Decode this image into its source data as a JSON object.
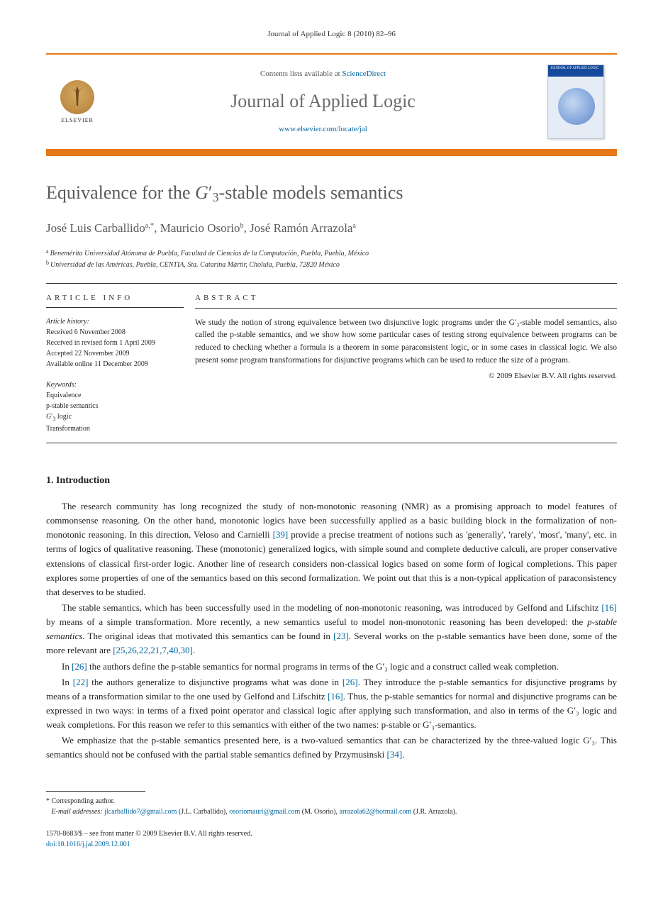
{
  "citation": "Journal of Applied Logic 8 (2010) 82–96",
  "header": {
    "elsevier": "ELSEVIER",
    "contents_prefix": "Contents lists available at ",
    "sciencedirect": "ScienceDirect",
    "journal_name": "Journal of Applied Logic",
    "journal_url": "www.elsevier.com/locate/jal",
    "cover_title": "JOURNAL OF APPLIED LOGIC"
  },
  "title": "Equivalence for the G′₃-stable models semantics",
  "authors_html": "José Luis Carballido",
  "authors": {
    "a1_name": "José Luis Carballido",
    "a1_sup": "a,",
    "a1_star": "*",
    "sep1": ", ",
    "a2_name": "Mauricio Osorio",
    "a2_sup": "b",
    "sep2": ", ",
    "a3_name": "José Ramón Arrazola",
    "a3_sup": "a"
  },
  "affiliations": {
    "a": "Benemérita Universidad Atónoma de Puebla, Facultad de Ciencias de la Computación, Puebla, Puebla, México",
    "b": "Universidad de las Américas, Puebla, CENTIA, Sta. Catarina Mártir, Cholula, Puebla, 72820 México"
  },
  "article_info": {
    "heading": "ARTICLE INFO",
    "history_label": "Article history:",
    "received": "Received 6 November 2008",
    "revised": "Received in revised form 1 April 2009",
    "accepted": "Accepted 22 November 2009",
    "online": "Available online 11 December 2009",
    "kw_label": "Keywords:",
    "kw1": "Equivalence",
    "kw2": "p-stable semantics",
    "kw3": "G′₃ logic",
    "kw4": "Transformation"
  },
  "abstract": {
    "heading": "ABSTRACT",
    "text": "We study the notion of strong equivalence between two disjunctive logic programs under the G′₃-stable model semantics, also called the p-stable semantics, and we show how some particular cases of testing strong equivalence between programs can be reduced to checking whether a formula is a theorem in some paraconsistent logic, or in some cases in classical logic. We also present some program transformations for disjunctive programs which can be used to reduce the size of a program.",
    "copyright": "© 2009 Elsevier B.V. All rights reserved."
  },
  "section1": {
    "heading": "1. Introduction",
    "p1_a": "The research community has long recognized the study of non-monotonic reasoning (NMR) as a promising approach to model features of commonsense reasoning. On the other hand, monotonic logics have been successfully applied as a basic building block in the formalization of non-monotonic reasoning. In this direction, Veloso and Carnielli ",
    "p1_cite1": "[39]",
    "p1_b": " provide a precise treatment of notions such as 'generally', 'rarely', 'most', 'many', etc. in terms of logics of qualitative reasoning. These (monotonic) generalized logics, with simple sound and complete deductive calculi, are proper conservative extensions of classical first-order logic. Another line of research considers non-classical logics based on some form of logical completions. This paper explores some properties of one of the semantics based on this second formalization. We point out that this is a non-typical application of paraconsistency that deserves to be studied.",
    "p2_a": "The stable semantics, which has been successfully used in the modeling of non-monotonic reasoning, was introduced by Gelfond and Lifschitz ",
    "p2_cite1": "[16]",
    "p2_b": " by means of a simple transformation. More recently, a new semantics useful to model non-monotonic reasoning has been developed: the ",
    "p2_em": "p-stable semantics",
    "p2_c": ". The original ideas that motivated this semantics can be found in ",
    "p2_cite2": "[23]",
    "p2_d": ". Several works on the p-stable semantics have been done, some of the more relevant are ",
    "p2_cite3": "[25,26,22,21,7,40,30]",
    "p2_e": ".",
    "p3_a": "In ",
    "p3_cite1": "[26]",
    "p3_b": " the authors define the p-stable semantics for normal programs in terms of the G′₃ logic and a construct called weak completion.",
    "p4_a": "In ",
    "p4_cite1": "[22]",
    "p4_b": " the authors generalize to disjunctive programs what was done in ",
    "p4_cite2": "[26]",
    "p4_c": ". They introduce the p-stable semantics for disjunctive programs by means of a transformation similar to the one used by Gelfond and Lifschitz ",
    "p4_cite3": "[16]",
    "p4_d": ". Thus, the p-stable semantics for normal and disjunctive programs can be expressed in two ways: in terms of a fixed point operator and classical logic after applying such transformation, and also in terms of the G′₃ logic and weak completions. For this reason we refer to this semantics with either of the two names: p-stable or G′₃-semantics.",
    "p5_a": "We emphasize that the p-stable semantics presented here, is a two-valued semantics that can be characterized by the three-valued logic G′₃. This semantics should not be confused with the partial stable semantics defined by Przymusinski ",
    "p5_cite1": "[34]",
    "p5_b": "."
  },
  "footnotes": {
    "corr": "Corresponding author.",
    "emails_label": "E-mail addresses:",
    "e1": "jlcarballido7@gmail.com",
    "e1_who": " (J.L. Carballido), ",
    "e2": "osoriomauri@gmail.com",
    "e2_who": " (M. Osorio), ",
    "e3": "arrazola62@hotmail.com",
    "e3_who": " (J.R. Arrazola)."
  },
  "bottom": {
    "line1": "1570-8683/$ – see front matter   © 2009 Elsevier B.V. All rights reserved.",
    "doi": "doi:10.1016/j.jal.2009.12.001"
  }
}
